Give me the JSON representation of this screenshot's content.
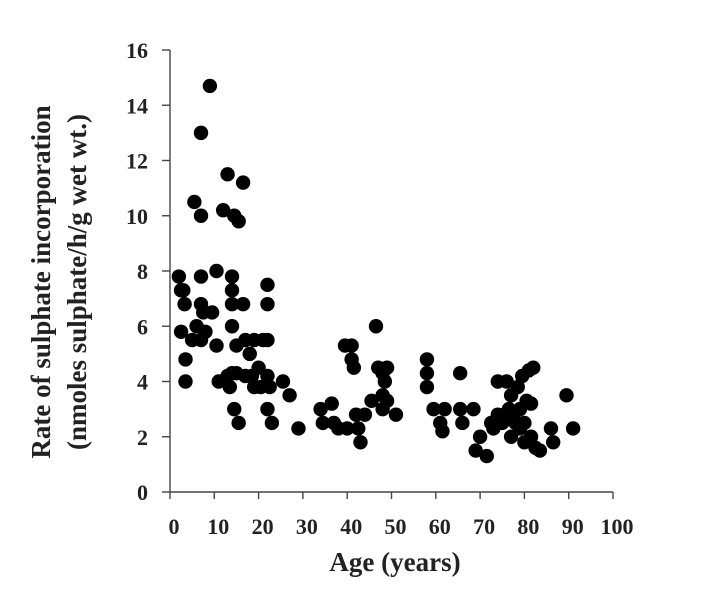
{
  "chart_data": {
    "type": "scatter",
    "title": "",
    "xlabel": "Age (years)",
    "ylabel_line1": "Rate of sulphate incorporation",
    "ylabel_line2": "(nmoles sulphate/h/g wet wt.)",
    "xlim": [
      0,
      100
    ],
    "ylim": [
      0,
      16
    ],
    "xticks": [
      "0",
      "10",
      "20",
      "30",
      "40",
      "50",
      "60",
      "70",
      "80",
      "90",
      "100"
    ],
    "yticks": [
      "0",
      "2",
      "4",
      "6",
      "8",
      "10",
      "12",
      "14",
      "16"
    ],
    "grid": false,
    "legend": "none",
    "marker_color": "#000000",
    "series": [
      {
        "points": [
          [
            2,
            7.8
          ],
          [
            2.5,
            7.3
          ],
          [
            2.5,
            5.8
          ],
          [
            3,
            7.3
          ],
          [
            3.3,
            6.8
          ],
          [
            3.5,
            4.8
          ],
          [
            3.5,
            4.0
          ],
          [
            5,
            5.5
          ],
          [
            5.5,
            10.5
          ],
          [
            6,
            6.0
          ],
          [
            7,
            13.0
          ],
          [
            7,
            10.0
          ],
          [
            7,
            7.8
          ],
          [
            7,
            6.8
          ],
          [
            7,
            5.5
          ],
          [
            7.5,
            6.5
          ],
          [
            8,
            5.8
          ],
          [
            9,
            14.7
          ],
          [
            9.5,
            6.5
          ],
          [
            10.5,
            8.0
          ],
          [
            10.5,
            5.3
          ],
          [
            11,
            4.0
          ],
          [
            12,
            10.2
          ],
          [
            13,
            11.5
          ],
          [
            13,
            4.2
          ],
          [
            13.5,
            3.8
          ],
          [
            14,
            7.8
          ],
          [
            14,
            7.3
          ],
          [
            14,
            6.8
          ],
          [
            14,
            6.0
          ],
          [
            14,
            4.3
          ],
          [
            14.5,
            10.0
          ],
          [
            14.5,
            3.0
          ],
          [
            15,
            5.3
          ],
          [
            15,
            4.3
          ],
          [
            15.5,
            9.8
          ],
          [
            15.5,
            2.5
          ],
          [
            16.5,
            11.2
          ],
          [
            16.5,
            6.8
          ],
          [
            17,
            5.5
          ],
          [
            17,
            4.2
          ],
          [
            18,
            5.0
          ],
          [
            18.5,
            4.2
          ],
          [
            19,
            5.5
          ],
          [
            19,
            3.8
          ],
          [
            20,
            4.5
          ],
          [
            20.5,
            3.8
          ],
          [
            21,
            5.5
          ],
          [
            22,
            7.5
          ],
          [
            22,
            6.8
          ],
          [
            22,
            5.5
          ],
          [
            22,
            4.2
          ],
          [
            22,
            3.0
          ],
          [
            22.5,
            3.8
          ],
          [
            23,
            2.5
          ],
          [
            25.5,
            4.0
          ],
          [
            27,
            3.5
          ],
          [
            29,
            2.3
          ],
          [
            34,
            3.0
          ],
          [
            34.5,
            2.5
          ],
          [
            36.5,
            3.2
          ],
          [
            37,
            2.5
          ],
          [
            38,
            2.3
          ],
          [
            39.5,
            5.3
          ],
          [
            40,
            2.3
          ],
          [
            41,
            5.3
          ],
          [
            41,
            4.8
          ],
          [
            41.5,
            4.5
          ],
          [
            42,
            2.8
          ],
          [
            42.5,
            2.3
          ],
          [
            43,
            1.8
          ],
          [
            44,
            2.8
          ],
          [
            45.5,
            3.3
          ],
          [
            46.5,
            6.0
          ],
          [
            47,
            4.5
          ],
          [
            48,
            4.3
          ],
          [
            48,
            3.5
          ],
          [
            48,
            3.0
          ],
          [
            48.5,
            4.0
          ],
          [
            49,
            3.3
          ],
          [
            49,
            4.5
          ],
          [
            51,
            2.8
          ],
          [
            58,
            4.8
          ],
          [
            58,
            4.3
          ],
          [
            58,
            3.8
          ],
          [
            59.5,
            3.0
          ],
          [
            61,
            2.5
          ],
          [
            61.5,
            2.2
          ],
          [
            62,
            3.0
          ],
          [
            65.5,
            4.3
          ],
          [
            65.5,
            3.0
          ],
          [
            66,
            2.5
          ],
          [
            68.5,
            3.0
          ],
          [
            69,
            1.5
          ],
          [
            70,
            2.0
          ],
          [
            71.5,
            1.3
          ],
          [
            72.5,
            2.5
          ],
          [
            73,
            2.3
          ],
          [
            74,
            4.0
          ],
          [
            74,
            2.8
          ],
          [
            75,
            2.5
          ],
          [
            75.5,
            2.8
          ],
          [
            76,
            4.0
          ],
          [
            76.5,
            3.0
          ],
          [
            77,
            3.5
          ],
          [
            77,
            2.0
          ],
          [
            77.5,
            2.7
          ],
          [
            78,
            2.5
          ],
          [
            78.5,
            3.8
          ],
          [
            79,
            3.0
          ],
          [
            79,
            2.3
          ],
          [
            79.5,
            4.2
          ],
          [
            80,
            2.5
          ],
          [
            80,
            1.8
          ],
          [
            80.5,
            3.3
          ],
          [
            81,
            4.4
          ],
          [
            81.5,
            3.2
          ],
          [
            81.5,
            2.0
          ],
          [
            82,
            4.5
          ],
          [
            82.5,
            1.6
          ],
          [
            83.5,
            1.5
          ],
          [
            86,
            2.3
          ],
          [
            86.5,
            1.8
          ],
          [
            89.5,
            3.5
          ],
          [
            91,
            2.3
          ]
        ]
      }
    ]
  }
}
